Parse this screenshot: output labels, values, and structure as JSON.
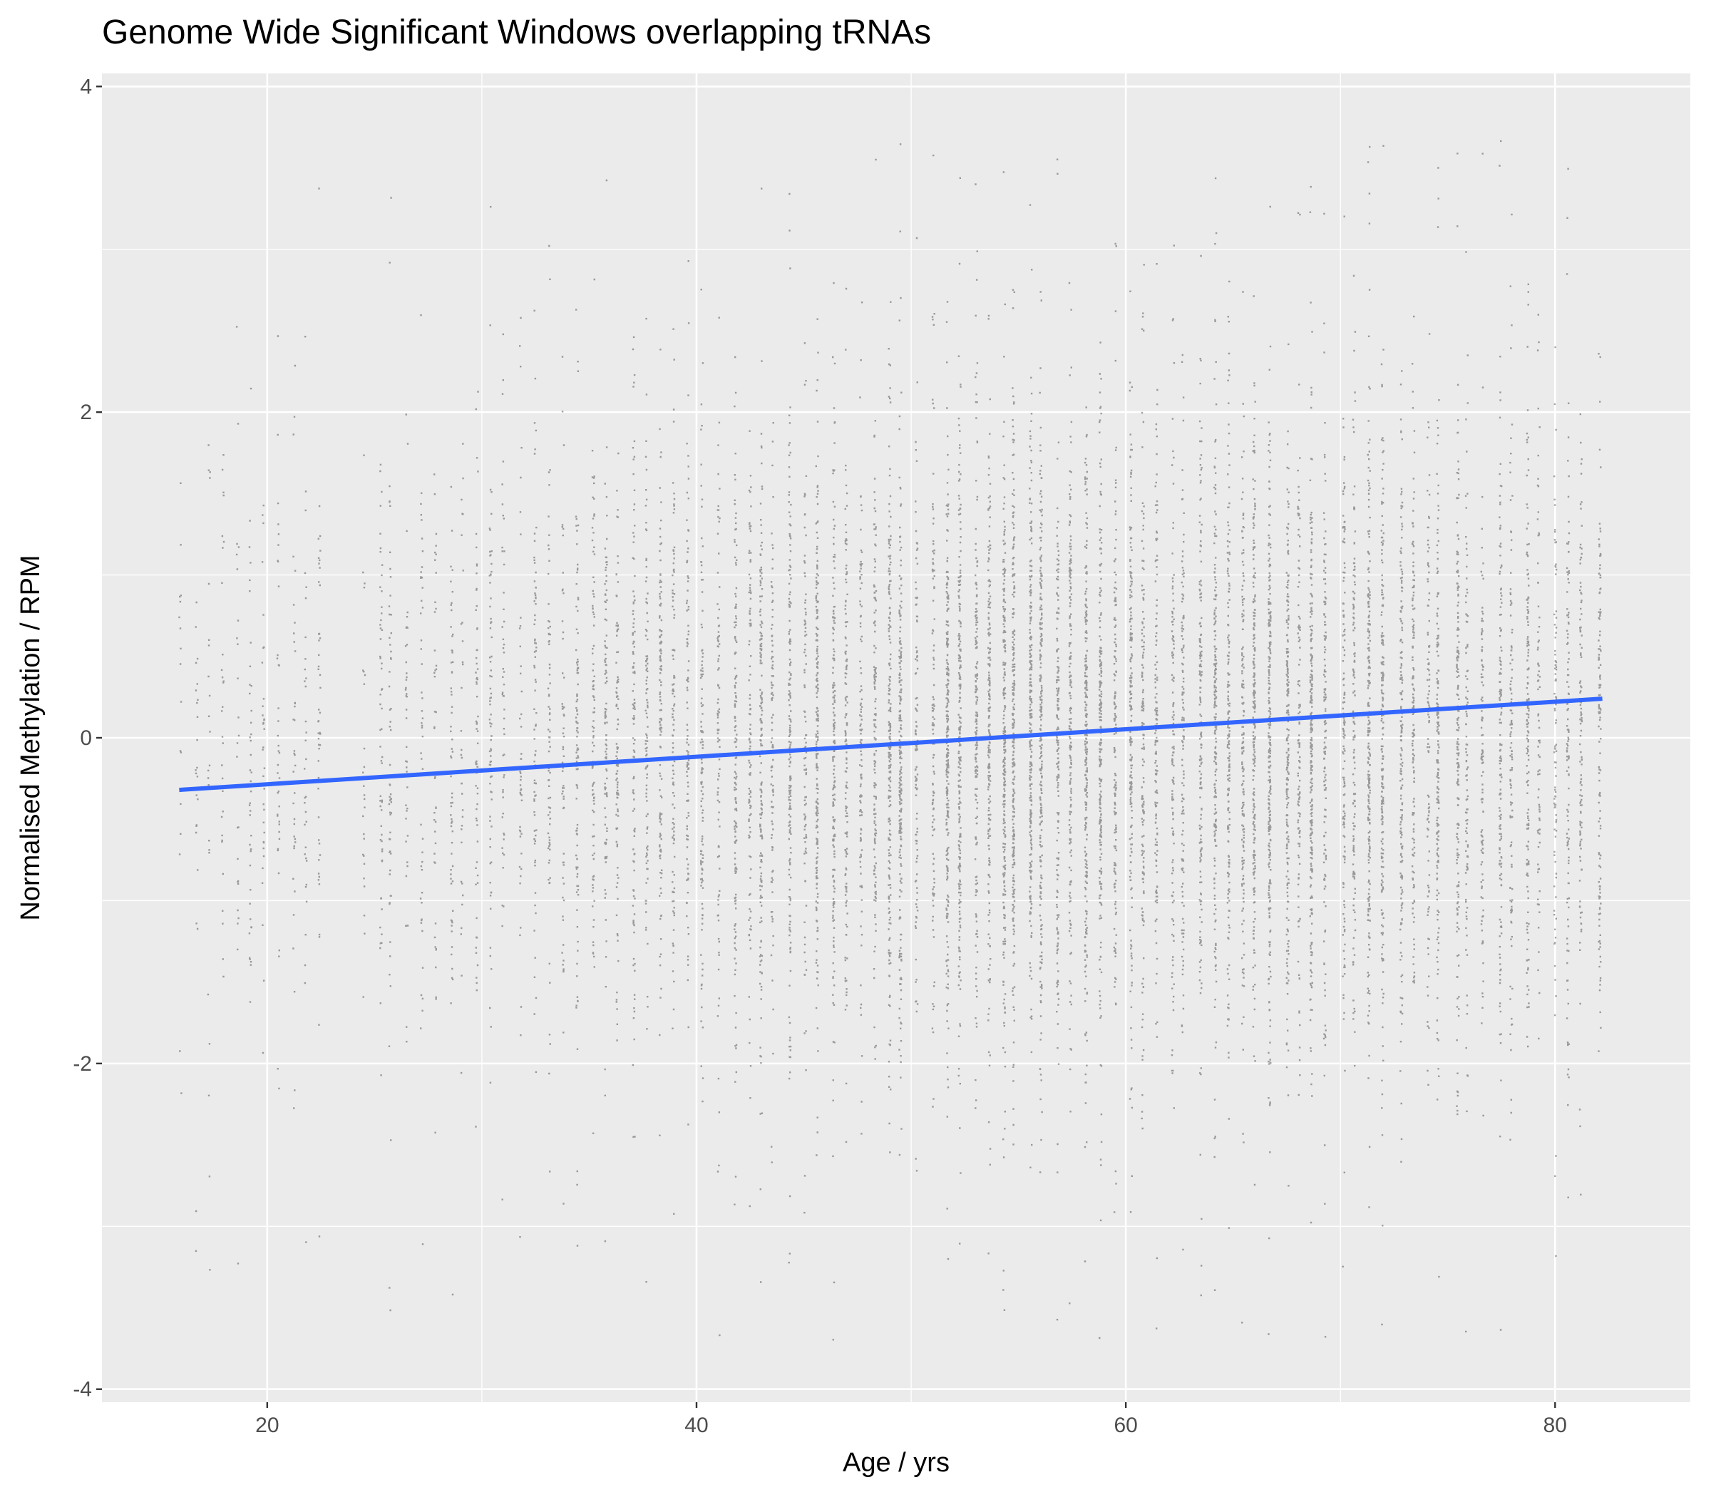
{
  "chart_data": {
    "type": "scatter",
    "title": "Genome Wide Significant Windows overlapping tRNAs",
    "xlabel": "Age / yrs",
    "ylabel": "Normalised Methylation / RPM",
    "xlim": [
      12.3,
      86.3
    ],
    "ylim": [
      -4.08,
      4.08
    ],
    "x_ticks": [
      20,
      40,
      60,
      80
    ],
    "x_tick_labels": [
      "20",
      "40",
      "60",
      "80"
    ],
    "y_ticks": [
      -4,
      -2,
      0,
      2,
      4
    ],
    "y_tick_labels": [
      "-4",
      "-2",
      "0",
      "2",
      "4"
    ],
    "grid": true,
    "legend": "none",
    "age_range": [
      15.9,
      82.2
    ],
    "methylation_range": [
      -3.7,
      3.7
    ],
    "series": [
      {
        "kind": "points",
        "color": "#000000",
        "opacity": 0.35,
        "density_peak_age": 60,
        "methylation_mean": 0,
        "methylation_sd": 0.9
      },
      {
        "kind": "trend_line",
        "method": "linear",
        "color": "#3366ff",
        "x": [
          15.9,
          82.2
        ],
        "y": [
          -0.32,
          0.24
        ]
      }
    ]
  }
}
